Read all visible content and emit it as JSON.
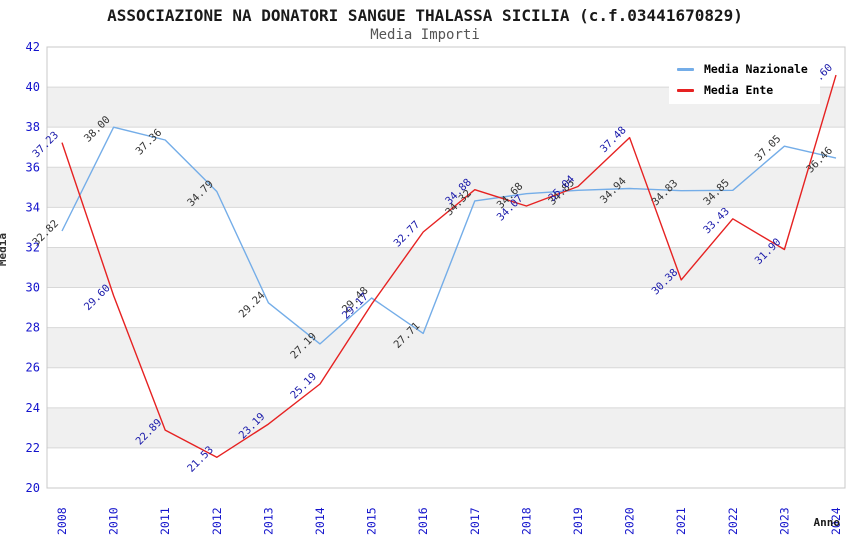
{
  "header": {
    "title": "ASSOCIAZIONE NA DONATORI SANGUE THALASSA SICILIA (c.f.03441670829)",
    "subtitle": "Media Importi"
  },
  "chart_data": {
    "type": "line",
    "title": "ASSOCIAZIONE NA DONATORI SANGUE THALASSA SICILIA (c.f.03441670829)",
    "subtitle": "Media Importi",
    "xlabel": "Anno",
    "ylabel": "Media",
    "ylim": [
      20,
      42
    ],
    "ytick_step": 2,
    "grid": true,
    "legend_position": "top-right",
    "categories": [
      "2008",
      "2010",
      "2011",
      "2012",
      "2013",
      "2014",
      "2015",
      "2016",
      "2017",
      "2018",
      "2019",
      "2020",
      "2021",
      "2022",
      "2023",
      "2024"
    ],
    "series": [
      {
        "name": "Media Nazionale",
        "color": "#74ade8",
        "label_color": "#333333",
        "values": [
          32.82,
          38.0,
          37.36,
          34.79,
          29.24,
          27.19,
          29.48,
          27.71,
          34.32,
          34.68,
          34.85,
          34.94,
          34.83,
          34.85,
          37.05,
          36.46
        ]
      },
      {
        "name": "Media Ente",
        "color": "#e62222",
        "label_color": "#1a1aaa",
        "values": [
          37.23,
          29.6,
          22.89,
          21.53,
          23.19,
          25.19,
          29.17,
          32.77,
          34.88,
          34.07,
          35.04,
          37.48,
          30.38,
          33.43,
          31.9,
          40.6
        ]
      }
    ],
    "colors": {
      "band": "#f0f0f0",
      "gridline": "#d8d8d8",
      "plot_border": "#c8c8c8",
      "tick_label": "#1414cc"
    }
  }
}
